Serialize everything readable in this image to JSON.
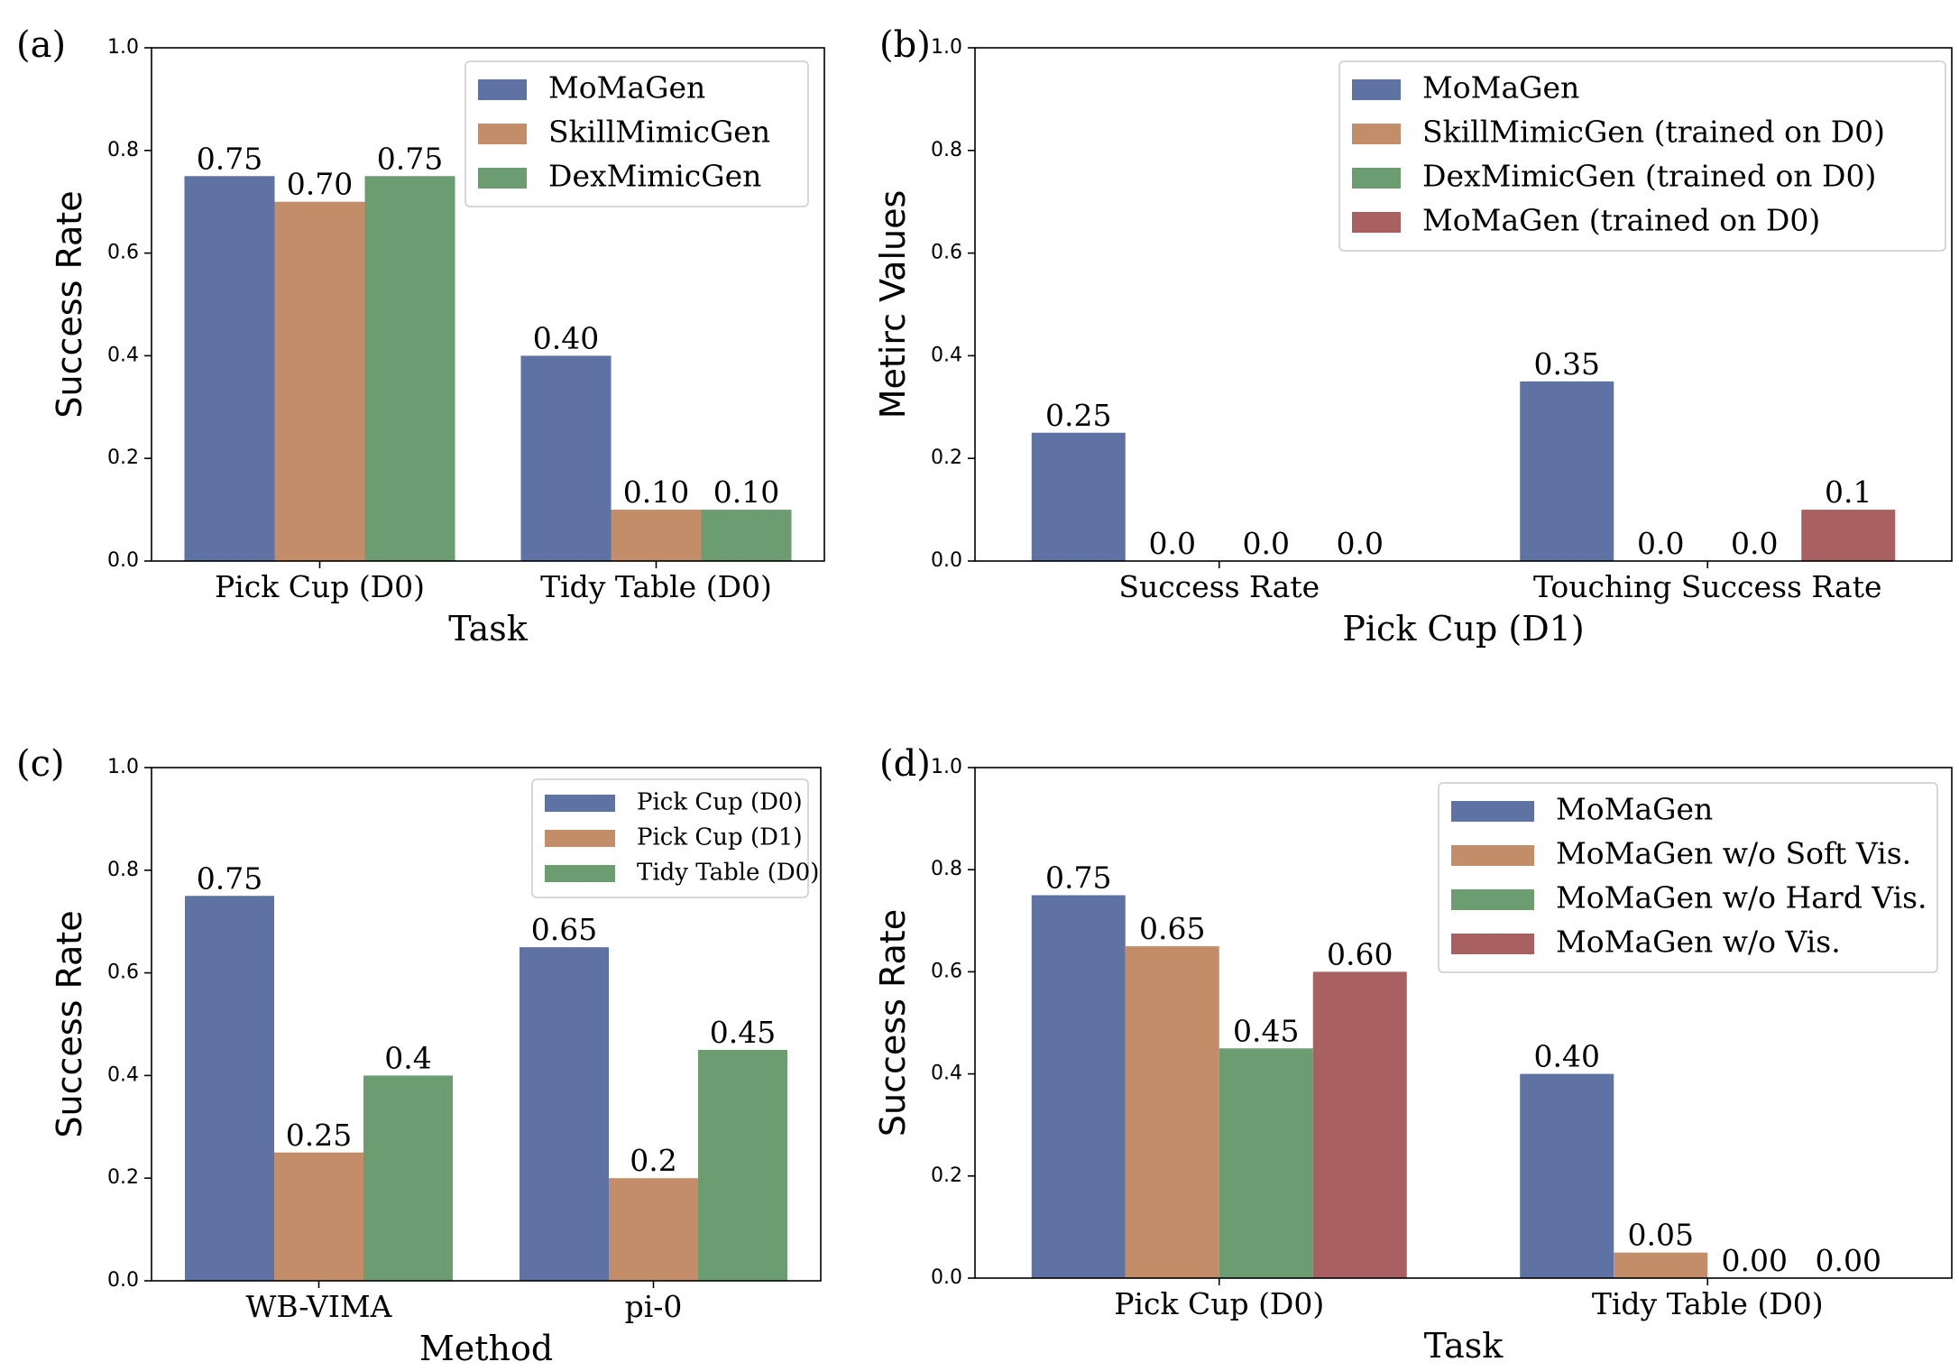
{
  "chart_data": [
    {
      "panel": "(a)",
      "type": "bar",
      "categories": [
        "Pick Cup (D0)",
        "Tidy Table (D0)"
      ],
      "series": [
        {
          "name": "MoMaGen",
          "color": "#5e73a3",
          "values": [
            0.75,
            0.4
          ],
          "labels": [
            "0.75",
            "0.40"
          ]
        },
        {
          "name": "SkillMimicGen",
          "color": "#c48d6a",
          "values": [
            0.7,
            0.1
          ],
          "labels": [
            "0.70",
            "0.10"
          ]
        },
        {
          "name": "DexMimicGen",
          "color": "#6b9d71",
          "values": [
            0.75,
            0.1
          ],
          "labels": [
            "0.75",
            "0.10"
          ]
        }
      ],
      "xlabel": "Task",
      "ylabel": "Success Rate",
      "ylim": [
        0,
        1.0
      ],
      "yticks": [
        "0.0",
        "0.2",
        "0.4",
        "0.6",
        "0.8",
        "1.0"
      ],
      "legend": "top-right"
    },
    {
      "panel": "(b)",
      "type": "bar",
      "categories": [
        "Success Rate",
        "Touching Success Rate"
      ],
      "series": [
        {
          "name": "MoMaGen",
          "color": "#5e73a3",
          "values": [
            0.25,
            0.35
          ],
          "labels": [
            "0.25",
            "0.35"
          ]
        },
        {
          "name": "SkillMimicGen (trained on D0)",
          "color": "#c48d6a",
          "values": [
            0.0,
            0.0
          ],
          "labels": [
            "0.0",
            "0.0"
          ]
        },
        {
          "name": "DexMimicGen (trained on D0)",
          "color": "#6b9d71",
          "values": [
            0.0,
            0.0
          ],
          "labels": [
            "0.0",
            "0.0"
          ]
        },
        {
          "name": "MoMaGen (trained on D0)",
          "color": "#a86060",
          "values": [
            0.0,
            0.1
          ],
          "labels": [
            "0.0",
            "0.1"
          ]
        }
      ],
      "xlabel": "Pick Cup (D1)",
      "ylabel": "Metirc Values",
      "ylim": [
        0,
        1.0
      ],
      "yticks": [
        "0.0",
        "0.2",
        "0.4",
        "0.6",
        "0.8",
        "1.0"
      ],
      "legend": "top-right"
    },
    {
      "panel": "(c)",
      "type": "bar",
      "categories": [
        "WB-VIMA",
        "pi-0"
      ],
      "series": [
        {
          "name": "Pick Cup (D0)",
          "color": "#5e73a3",
          "values": [
            0.75,
            0.65
          ],
          "labels": [
            "0.75",
            "0.65"
          ]
        },
        {
          "name": "Pick Cup (D1)",
          "color": "#c48d6a",
          "values": [
            0.25,
            0.2
          ],
          "labels": [
            "0.25",
            "0.2"
          ]
        },
        {
          "name": "Tidy Table (D0)",
          "color": "#6b9d71",
          "values": [
            0.4,
            0.45
          ],
          "labels": [
            "0.4",
            "0.45"
          ]
        }
      ],
      "xlabel": "Method",
      "ylabel": "Success Rate",
      "ylim": [
        0,
        1.0
      ],
      "yticks": [
        "0.0",
        "0.2",
        "0.4",
        "0.6",
        "0.8",
        "1.0"
      ],
      "legend": "top-right"
    },
    {
      "panel": "(d)",
      "type": "bar",
      "categories": [
        "Pick Cup (D0)",
        "Tidy Table (D0)"
      ],
      "series": [
        {
          "name": "MoMaGen",
          "color": "#5e73a3",
          "values": [
            0.75,
            0.4
          ],
          "labels": [
            "0.75",
            "0.40"
          ]
        },
        {
          "name": "MoMaGen w/o Soft Vis.",
          "color": "#c48d6a",
          "values": [
            0.65,
            0.05
          ],
          "labels": [
            "0.65",
            "0.05"
          ]
        },
        {
          "name": "MoMaGen w/o Hard Vis.",
          "color": "#6b9d71",
          "values": [
            0.45,
            0.0
          ],
          "labels": [
            "0.45",
            "0.00"
          ]
        },
        {
          "name": "MoMaGen w/o Vis.",
          "color": "#a86060",
          "values": [
            0.6,
            0.0
          ],
          "labels": [
            "0.60",
            "0.00"
          ]
        }
      ],
      "xlabel": "Task",
      "ylabel": "Success Rate",
      "ylim": [
        0,
        1.0
      ],
      "yticks": [
        "0.0",
        "0.2",
        "0.4",
        "0.6",
        "0.8",
        "1.0"
      ],
      "legend": "top-right"
    }
  ]
}
